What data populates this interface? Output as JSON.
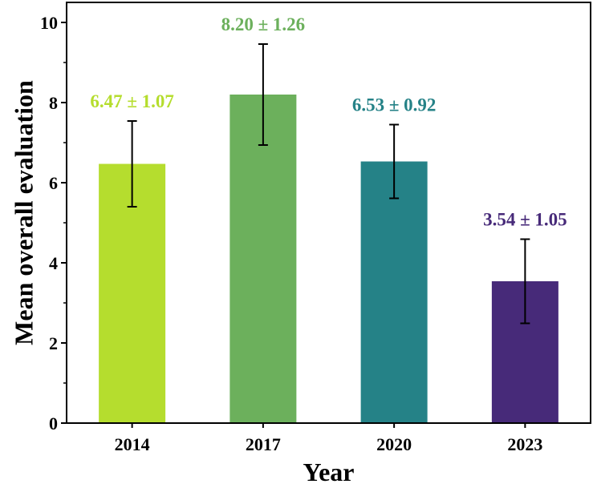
{
  "chart_data": {
    "type": "bar",
    "title": "",
    "xlabel": "Year",
    "ylabel": "Mean overall evaluation",
    "categories": [
      "2014",
      "2017",
      "2020",
      "2023"
    ],
    "values": [
      6.47,
      8.2,
      6.53,
      3.54
    ],
    "errors": [
      1.07,
      1.26,
      0.92,
      1.05
    ],
    "data_labels": [
      "6.47 ± 1.07",
      "8.20 ± 1.26",
      "6.53 ± 0.92",
      "3.54 ± 1.05"
    ],
    "colors": [
      "#b5dd2e",
      "#6cb05c",
      "#258287",
      "#472a79"
    ],
    "ylim": [
      0,
      10.5
    ],
    "yticks": [
      0,
      2,
      4,
      6,
      8,
      10
    ],
    "ytick_labels": [
      "0",
      "2",
      "4",
      "6",
      "8",
      "10"
    ],
    "grid": false,
    "legend": "none"
  }
}
